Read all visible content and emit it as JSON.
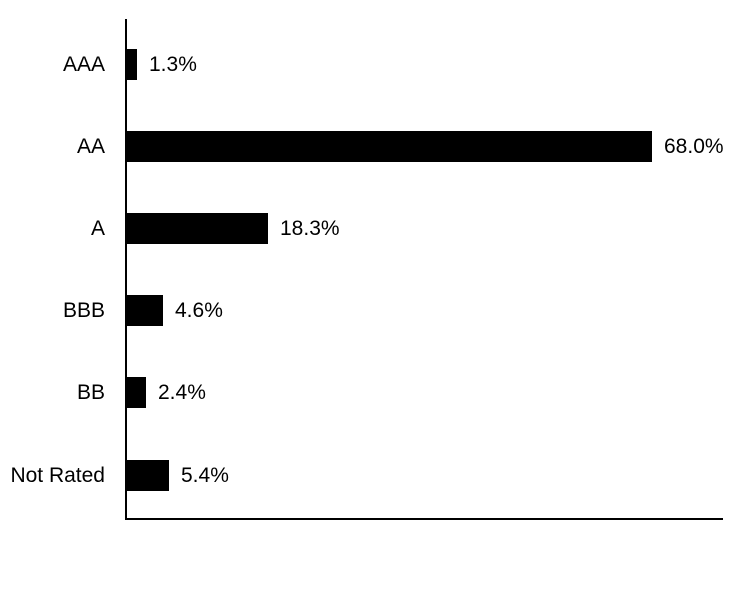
{
  "chart_data": {
    "type": "bar",
    "orientation": "horizontal",
    "categories": [
      "AAA",
      "AA",
      "A",
      "BBB",
      "BB",
      "Not Rated"
    ],
    "values": [
      1.3,
      68.0,
      18.3,
      4.6,
      2.4,
      5.4
    ],
    "value_labels": [
      "1.3%",
      "68.0%",
      "18.3%",
      "4.6%",
      "2.4%",
      "5.4%"
    ],
    "title": "",
    "xlabel": "",
    "ylabel": "",
    "xlim": [
      0,
      77.4
    ],
    "grid": false,
    "legend": false,
    "value_label_position": "right-of-bar",
    "bar_color": "#000000",
    "axis_color": "#000000",
    "background_color": "#ffffff"
  }
}
